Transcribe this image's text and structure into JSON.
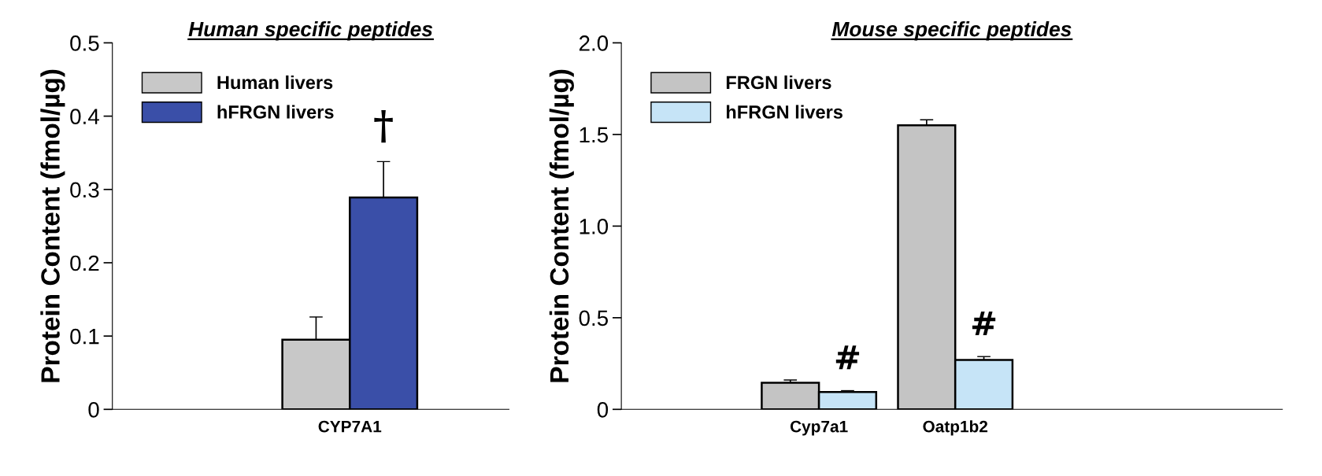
{
  "chart_data": [
    {
      "type": "bar",
      "title": "Human specific peptides",
      "ylabel": "Protein Content (fmol/µg)",
      "categories": [
        "CYP7A1"
      ],
      "ylim": [
        0,
        0.5
      ],
      "yticks": [
        0,
        0.1,
        0.2,
        0.3,
        0.4,
        0.5
      ],
      "legend": "top left",
      "grid": false,
      "series": [
        {
          "name": "Human livers",
          "color": "#c8c8c8",
          "values": [
            0.095
          ],
          "errors": [
            [
              0.095,
              0.126
            ]
          ]
        },
        {
          "name": "hFRGN livers",
          "color": "#3a4fa8",
          "values": [
            0.289
          ],
          "errors": [
            [
              0.289,
              0.338
            ]
          ]
        }
      ],
      "annotations": [
        "†"
      ]
    },
    {
      "type": "bar",
      "title": "Mouse specific peptides",
      "ylabel": "Protein Content (fmol/µg)",
      "categories": [
        "Cyp7a1",
        "Oatp1b2"
      ],
      "ylim": [
        0,
        2.0
      ],
      "yticks": [
        0,
        0.5,
        {
          "value": 1.0,
          "label": "1.0"
        },
        1.5,
        {
          "value": 2.0,
          "label": "2.0"
        }
      ],
      "legend": "top left",
      "grid": false,
      "series": [
        {
          "name": "FRGN livers",
          "color": "#c4c4c4",
          "values": [
            0.145,
            1.55
          ],
          "errors": [
            [
              0.145,
              0.16
            ],
            [
              1.55,
              1.58
            ]
          ]
        },
        {
          "name": "hFRGN livers",
          "color": "#c6e4f7",
          "values": [
            0.095,
            0.27
          ],
          "errors": [
            [
              0.095,
              0.102
            ],
            [
              0.27,
              0.288
            ]
          ]
        }
      ],
      "annotations": [
        "#",
        "#"
      ]
    }
  ]
}
